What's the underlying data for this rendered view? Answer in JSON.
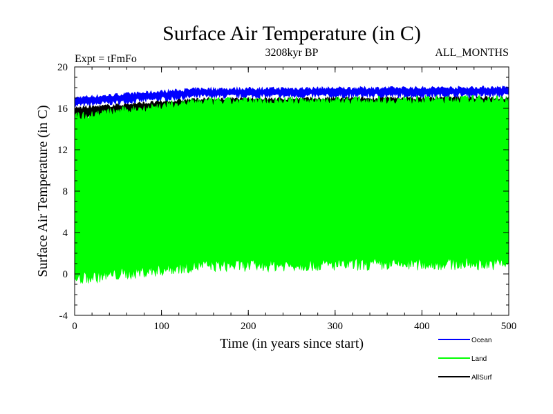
{
  "chart_data": {
    "type": "line",
    "title": "Surface Air Temperature (in C)",
    "subtitle_left": "Expt = tFmFo",
    "subtitle_center": "3208kyr BP",
    "subtitle_right": "ALL_MONTHS",
    "xlabel": "Time (in years since start)",
    "ylabel": "Surface Air Temperature (in C)",
    "xlim": [
      0,
      500
    ],
    "ylim": [
      -4,
      20
    ],
    "x_ticks": [
      0,
      100,
      200,
      300,
      400,
      500
    ],
    "y_ticks": [
      -4,
      0,
      4,
      8,
      12,
      16,
      20
    ],
    "series": [
      {
        "name": "Ocean",
        "color": "#0000ff",
        "band_start": [
          16.3,
          17.0
        ],
        "band_end": [
          17.3,
          18.0
        ],
        "style": "seasonal band"
      },
      {
        "name": "Land",
        "color": "#00ff00",
        "band_start": [
          -0.5,
          15.2
        ],
        "band_end": [
          1.0,
          16.9
        ],
        "style": "seasonal band"
      },
      {
        "name": "AllSurf",
        "color": "#000000",
        "band_start": [
          15.0,
          16.0
        ],
        "band_end": [
          16.3,
          17.0
        ],
        "style": "seasonal band"
      }
    ]
  }
}
